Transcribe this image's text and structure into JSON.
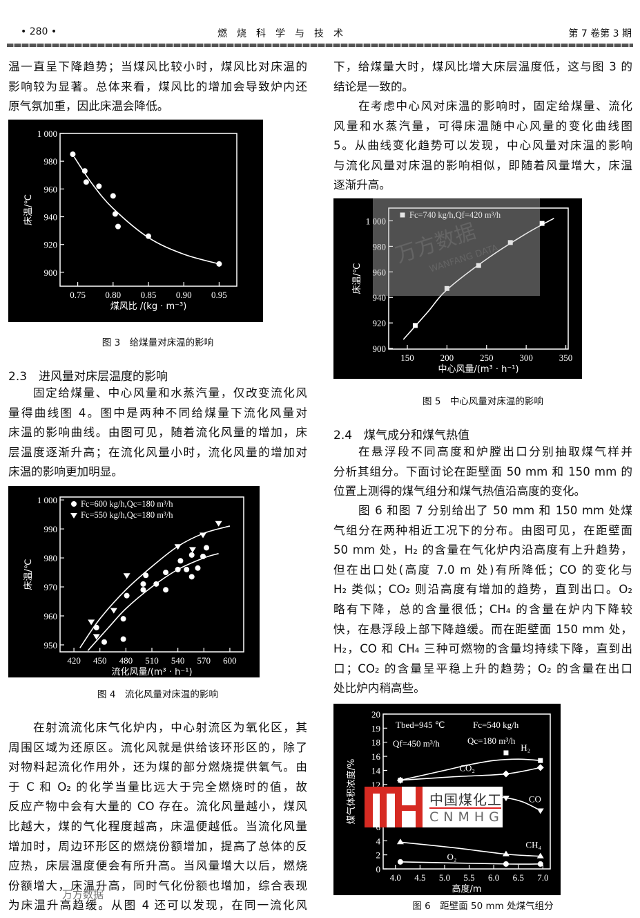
{
  "header": {
    "page": "• 280 •",
    "journal": "燃　烧　科　学　与　技　术",
    "issue": "第 7 卷第 3 期"
  },
  "left": {
    "p1": [
      "温一直呈下降趋势；当煤风比较小时，煤风比对床温的",
      "影响较为显著。总体来看，煤风比的增加会导致炉内还",
      "原气氛加重，因此床温会降低。"
    ],
    "fig3_caption": "图 3　给煤量对床温的影响",
    "h23": "2.3　进风量对床层温度的影响",
    "p2": [
      "固定给煤量、中心风量和水蒸汽量，仅改变流化风",
      "量得曲线图 4。图中是两种不同给煤量下流化风量对",
      "床温的影响曲线。由图可见，随着流化风量的增加，床",
      "层温度逐渐升高；在流化风量小时，流化风量的增加对",
      "床温的影响更加明显。"
    ],
    "fig4_caption": "图 4　流化风量对床温的影响",
    "p3": [
      "在射流流化床气化炉内，中心射流区为氧化区，其",
      "周围区域为还原区。流化风就是供给该环形区的，除了",
      "对物料起流化作用外，还为煤的部分燃烧提供氧气。由",
      "于 C 和 O₂ 的化学当量比远大于完全燃烧时的值，故",
      "反应产物中会有大量的 CO 存在。流化风量越小，煤风",
      "比越大，煤的气化程度越高，床温便越低。当流化风量",
      "增加时，周边环形区的燃烧份额增加，提高了总体的反",
      "应热，床层温度便会有所升高。当风量增大以后，燃烧",
      "份额增大，床温升高，同时气化份额也增加，综合表现",
      "为床温升高趋缓。从图 4 还可以发现，在同一流化风"
    ],
    "watermark": "万方数据"
  },
  "right": {
    "p1": [
      "下，给煤量大时，煤风比增大床层温度低，这与图 3 的",
      "结论是一致的。"
    ],
    "p2": [
      "在考虑中心风对床温的影响时，固定给煤量、流化",
      "风量和水蒸汽量，可得床温随中心风量的变化曲线图",
      "5。从曲线变化趋势可以发现，中心风量对床温的影响",
      "与流化风量对床温的影响相似，即随着风量增大，床温",
      "逐渐升高。"
    ],
    "fig5_caption": "图 5　中心风量对床温的影响",
    "fig5_watermark": [
      "万方数据",
      "WANFANG DATA"
    ],
    "h24": "2.4　煤气成分和煤气热值",
    "p3": [
      "在悬浮段不同高度和炉膛出口分别抽取煤气样并",
      "分析其组分。下面讨论在距壁面 50 mm 和 150 mm 的",
      "位置上测得的煤气组分和煤气热值沿高度的变化。"
    ],
    "p4": [
      "图 6 和图 7 分别给出了 50 mm 和 150 mm 处煤",
      "气组分在两种相近工况下的分布。由图可见，在距壁面",
      "50 mm 处，H₂ 的含量在气化炉内沿高度有上升趋势，",
      "但在出口处(高度 7.0 m 处)有所降低；CO 的变化与",
      "H₂ 类似；CO₂ 则沿高度有增加的趋势，直到出口。O₂",
      "略有下降，总的含量很低；CH₄ 的含量在炉内下降较",
      "快，在悬浮段上部下降趋缓。而在距壁面 150 mm 处，",
      "H₂，CO 和 CH₄ 三种可燃物的含量均持续下降，直到出",
      "口；CO₂ 的含量呈平稳上升的趋势；O₂ 的含量在出口",
      "处比炉内稍高些。"
    ],
    "fig6_caption": "图 6　距壁面 50 mm 处煤气组分",
    "logo": {
      "cn": "中国煤化工",
      "en": "CNMHG"
    }
  },
  "chart_data": [
    {
      "type": "scatter",
      "background": "#000000",
      "foreground": "#ffffff",
      "xlabel": "煤风比 /(kg · m⁻³)",
      "ylabel": "床温/℃",
      "xlim": [
        0.725,
        0.975
      ],
      "ylim": [
        890,
        1000
      ],
      "xticks": [
        0.75,
        0.8,
        0.85,
        0.9,
        0.95
      ],
      "xtick_labels": [
        "0.75",
        "0.80",
        "0.85",
        "0.90",
        "0.95"
      ],
      "yticks": [
        900,
        920,
        940,
        960,
        980,
        1000
      ],
      "ytick_labels": [
        "900",
        "920",
        "940",
        "960",
        "980",
        "1 000"
      ],
      "series": [
        {
          "marker": "circle",
          "points": [
            [
              0.743,
              985
            ],
            [
              0.76,
              973
            ],
            [
              0.762,
              965
            ],
            [
              0.78,
              962
            ],
            [
              0.8,
              955
            ],
            [
              0.803,
              942
            ],
            [
              0.807,
              933
            ],
            [
              0.85,
              926
            ],
            [
              0.95,
              906
            ]
          ],
          "fit": [
            [
              0.745,
              983
            ],
            [
              0.77,
              964
            ],
            [
              0.8,
              946
            ],
            [
              0.85,
              925
            ],
            [
              0.9,
              913
            ],
            [
              0.95,
              906
            ]
          ]
        }
      ]
    },
    {
      "type": "scatter",
      "background": "#000000",
      "foreground": "#ffffff",
      "xlabel": "流化风量/(m³ · h⁻¹)",
      "ylabel": "床温/℃",
      "xlim": [
        404,
        616
      ],
      "ylim": [
        947.6,
        1001
      ],
      "xticks": [
        420,
        450,
        480,
        510,
        540,
        570,
        600
      ],
      "xtick_labels": [
        "420",
        "450",
        "480",
        "510",
        "540",
        "570",
        "600"
      ],
      "yticks": [
        950,
        960,
        970,
        980,
        990,
        1000
      ],
      "ytick_labels": [
        "950",
        "960",
        "970",
        "980",
        "990",
        "1 000"
      ],
      "legend_position": "top-left",
      "series": [
        {
          "name": "Fc=600 kg/h,Qc=180 m³/h",
          "marker": "circle",
          "points": [
            [
              446,
              956
            ],
            [
              455,
              951
            ],
            [
              477,
              959
            ],
            [
              477,
              952
            ],
            [
              481,
              967
            ],
            [
              500,
              971
            ],
            [
              500,
              969
            ],
            [
              503,
              974
            ],
            [
              515,
              971
            ],
            [
              526,
              975
            ],
            [
              526,
              969
            ],
            [
              540,
              976
            ],
            [
              543,
              979
            ],
            [
              550,
              976
            ],
            [
              556,
              981
            ],
            [
              556,
              973.5
            ],
            [
              563,
              976.5
            ],
            [
              569,
              980.5
            ],
            [
              573,
              983.5
            ]
          ],
          "fit": [
            [
              436,
              948
            ],
            [
              460,
              956
            ],
            [
              480,
              962.5
            ],
            [
              510,
              970
            ],
            [
              540,
              976
            ],
            [
              570,
              980
            ],
            [
              587,
              981.5
            ]
          ]
        },
        {
          "name": "Fc=550 kg/h,Qc=180 m³/h",
          "marker": "triangle-down",
          "points": [
            [
              440,
              958
            ],
            [
              446,
              953
            ],
            [
              466,
              962
            ],
            [
              481,
              974
            ],
            [
              540,
              984
            ],
            [
              557,
              983
            ],
            [
              569,
              988
            ],
            [
              587,
              992
            ]
          ],
          "fit": [
            [
              427,
              949
            ],
            [
              450,
              959
            ],
            [
              480,
              969
            ],
            [
              510,
              977
            ],
            [
              540,
              984
            ],
            [
              570,
              988.5
            ],
            [
              600,
              991
            ]
          ]
        }
      ]
    },
    {
      "type": "scatter",
      "background": "#000000",
      "foreground": "#ffffff",
      "xlabel": "中心风量/(m³ · h⁻¹)",
      "ylabel": "床温/℃",
      "xlim": [
        126.5,
        353
      ],
      "ylim": [
        899.5,
        1010
      ],
      "xticks": [
        150,
        200,
        250,
        300,
        350
      ],
      "xtick_labels": [
        "150",
        "200",
        "250",
        "300",
        "350"
      ],
      "yticks": [
        900,
        920,
        940,
        960,
        980,
        1000
      ],
      "ytick_labels": [
        "900",
        "920",
        "940",
        "960",
        "980",
        "1 000"
      ],
      "legend_position": "top-left",
      "series": [
        {
          "name": "Fc=740 kg/h,Qf=420 m³/h",
          "marker": "square",
          "points": [
            [
              160,
              918
            ],
            [
              200,
              947
            ],
            [
              240,
              965
            ],
            [
              280,
              983
            ],
            [
              320,
              998
            ]
          ],
          "fit": [
            [
              145,
              907
            ],
            [
              175,
              928
            ],
            [
              200,
              946
            ],
            [
              250,
              970
            ],
            [
              300,
              990
            ],
            [
              335,
              1002
            ]
          ]
        }
      ]
    },
    {
      "type": "line",
      "background": "#000000",
      "foreground": "#ffffff",
      "xlabel": "高度/m",
      "ylabel": "煤气体积浓度/%",
      "xlim": [
        3.75,
        7.15
      ],
      "ylim": [
        0,
        20
      ],
      "y_axis_break": "18–20 drawn at expanded scale",
      "xticks": [
        4.0,
        4.5,
        5.0,
        5.5,
        6.0,
        6.5,
        7.0
      ],
      "xtick_labels": [
        "4.0",
        "4.5",
        "5.0",
        "5.5",
        "6.0",
        "6.5",
        "7.0"
      ],
      "yticks": [
        0,
        2,
        4,
        6,
        8,
        10,
        12,
        14,
        16,
        18,
        19,
        20
      ],
      "ytick_labels": [
        "0",
        "2",
        "4",
        "6",
        "8",
        "10",
        "12",
        "14",
        "16",
        "18",
        "19",
        "20"
      ],
      "annotations": [
        "Tbed=945 ℃",
        "Qf=450 m³/h",
        "Fc=540 kg/h",
        "Qc=180  m³/h"
      ],
      "series": [
        {
          "name": "H₂",
          "marker": "square",
          "points": [
            [
              4.1,
              12.6
            ],
            [
              6.25,
              16.5
            ],
            [
              6.95,
              15.4
            ]
          ],
          "fit": [
            [
              4.1,
              12.6
            ],
            [
              5.0,
              14.0
            ],
            [
              5.5,
              14.8
            ],
            [
              6.0,
              15.4
            ],
            [
              6.5,
              15.6
            ],
            [
              6.95,
              15.4
            ]
          ]
        },
        {
          "name": "CO₂",
          "marker": "diamond",
          "points": [
            [
              4.1,
              12.6
            ],
            [
              6.25,
              13.5
            ],
            [
              6.95,
              14.4
            ]
          ],
          "fit": [
            [
              4.1,
              12.6
            ],
            [
              5.2,
              13.1
            ],
            [
              6.25,
              13.5
            ],
            [
              6.95,
              14.4
            ]
          ]
        },
        {
          "name": "CO",
          "marker": "triangle-down",
          "points": [
            [
              6.25,
              10.1
            ],
            [
              6.95,
              8.3
            ]
          ],
          "fit": [
            [
              5.9,
              10.2
            ],
            [
              6.25,
              10.1
            ],
            [
              6.6,
              9.5
            ],
            [
              6.95,
              8.3
            ]
          ]
        },
        {
          "name": "CH₄",
          "marker": "triangle-up",
          "points": [
            [
              4.1,
              3.8
            ],
            [
              6.25,
              2.1
            ],
            [
              6.95,
              1.8
            ]
          ],
          "fit": [
            [
              4.1,
              3.8
            ],
            [
              5.2,
              3.0
            ],
            [
              6.25,
              2.1
            ],
            [
              6.95,
              1.8
            ]
          ]
        },
        {
          "name": "O₂",
          "marker": "circle",
          "points": [
            [
              4.1,
              1.0
            ],
            [
              6.25,
              0.7
            ],
            [
              6.95,
              0.7
            ]
          ],
          "fit": [
            [
              4.1,
              1.0
            ],
            [
              6.25,
              0.7
            ],
            [
              6.95,
              0.7
            ]
          ]
        }
      ]
    }
  ]
}
